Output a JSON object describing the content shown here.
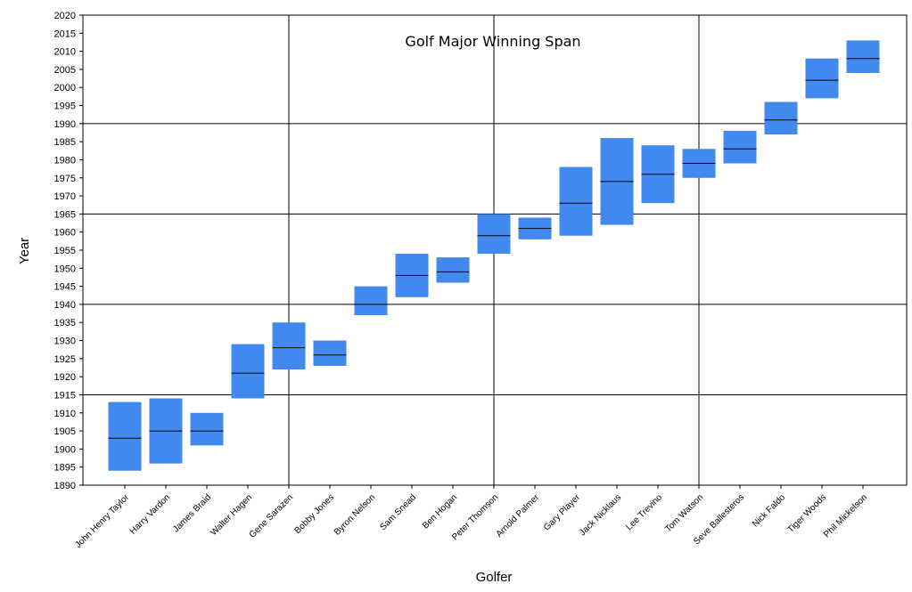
{
  "chart_data": {
    "type": "floating-bar",
    "title": "Golf Major Winning Span",
    "xlabel": "Golfer",
    "ylabel": "Year",
    "ylim": [
      1890,
      2020
    ],
    "y_ticks": [
      1890,
      1895,
      1900,
      1905,
      1910,
      1915,
      1920,
      1925,
      1930,
      1935,
      1940,
      1945,
      1950,
      1955,
      1960,
      1965,
      1970,
      1975,
      1980,
      1985,
      1990,
      1995,
      2000,
      2005,
      2010,
      2015,
      2020
    ],
    "y_tick_labels": [
      "1890",
      "1895",
      "1900",
      "1905",
      "1910",
      "1915",
      "1920",
      "1925",
      "1930",
      "1935",
      "1940",
      "1945",
      "1950",
      "1955",
      "1960",
      "1965",
      "1970",
      "1975",
      "1980",
      "1985",
      "1990",
      "1995",
      "2000",
      "2005",
      "2010",
      "2015",
      "2020"
    ],
    "bar_color": "#4189EF",
    "median_color": "#000000",
    "grid": true,
    "categories": [
      "John Henry Taylor",
      "Harry Vardon",
      "James Braid",
      "Walter Hagen",
      "Gene Sarazen",
      "Bobby Jones",
      "Byron Nelson",
      "Sam Snead",
      "Ben Hogan",
      "Peter Thomson",
      "Arnold Palmer",
      "Gary Player",
      "Jack Nicklaus",
      "Lee Trevino",
      "Tom Watson",
      "Seve Ballesteros",
      "Nick Faldo",
      "Tiger Woods",
      "Phil Mickelson"
    ],
    "start": [
      1894,
      1896,
      1901,
      1914,
      1922,
      1923,
      1937,
      1942,
      1946,
      1954,
      1958,
      1959,
      1962,
      1968,
      1975,
      1979,
      1987,
      1997,
      2004
    ],
    "end": [
      1913,
      1914,
      1910,
      1929,
      1935,
      1930,
      1945,
      1954,
      1953,
      1965,
      1964,
      1978,
      1986,
      1984,
      1983,
      1988,
      1996,
      2008,
      2013
    ],
    "mid": [
      1903,
      1905,
      1905,
      1921,
      1928,
      1926,
      1940,
      1948,
      1949,
      1959,
      1961,
      1968,
      1974,
      1976,
      1979,
      1983,
      1991,
      2002,
      2008
    ]
  }
}
